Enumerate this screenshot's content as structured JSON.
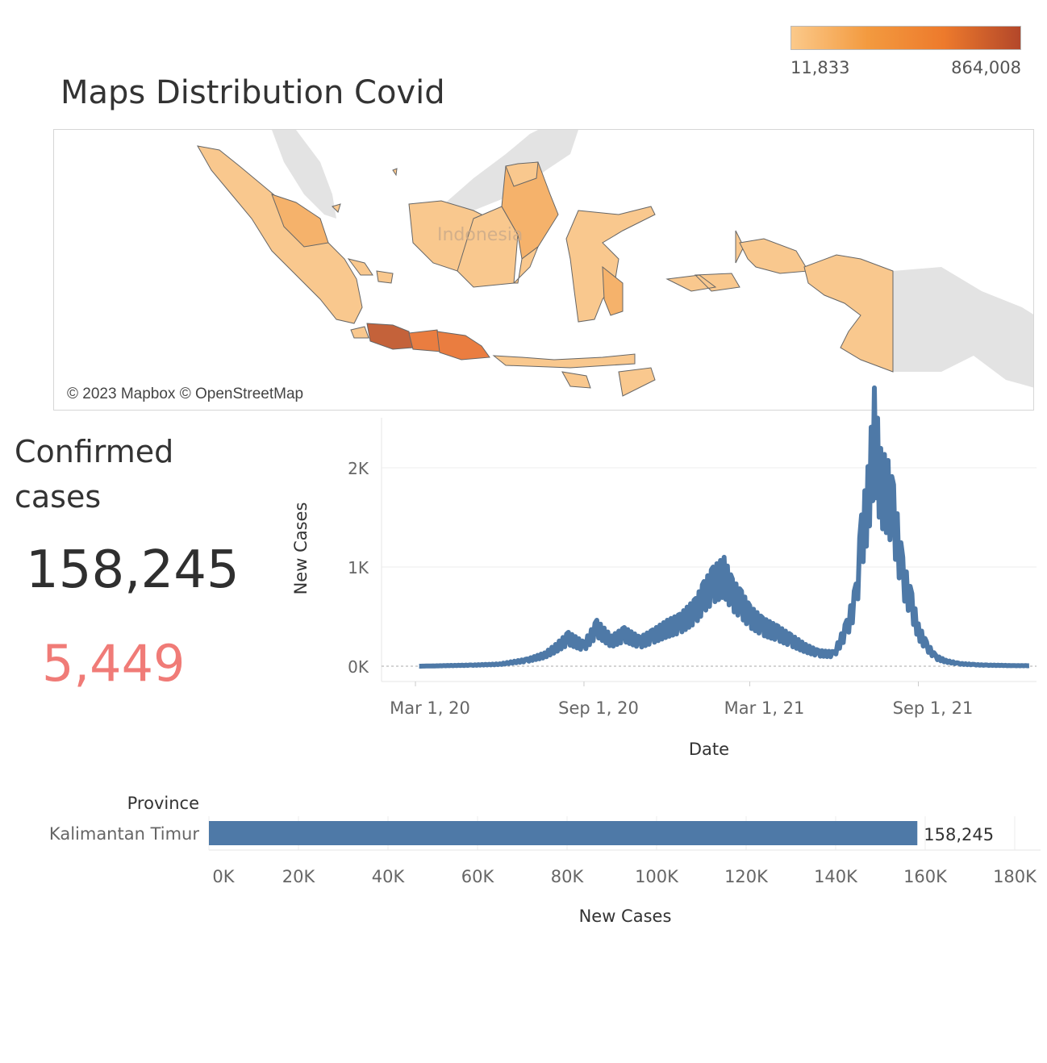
{
  "legend": {
    "min_label": "11,833",
    "max_label": "864,008",
    "gradient_colors": [
      "#fbc98a",
      "#f39a3f",
      "#ed7a2c",
      "#b3472a"
    ]
  },
  "map": {
    "title": "Maps Distribution Covid",
    "attribution": "© 2023 Mapbox © OpenStreetMap",
    "country_label": "Indonesia",
    "colors": {
      "low": "#f9c88e",
      "mid": "#f5b26b",
      "high": "#ea7d40",
      "max": "#c4623a",
      "land_other": "#e3e3e3",
      "border": "#555555"
    }
  },
  "kpi": {
    "title": "Confirmed cases",
    "total": "158,245",
    "new": "5,449"
  },
  "chart_data": [
    {
      "type": "line",
      "xlabel": "Date",
      "ylabel": "New Cases",
      "x_ticks": [
        "Mar 1, 20",
        "Sep 1, 20",
        "Mar 1, 21",
        "Sep 1, 21"
      ],
      "y_ticks": [
        "0K",
        "1K",
        "2K"
      ],
      "ylim": [
        0,
        2400
      ],
      "xlim": [
        "2020-01-24",
        "2022-01-08"
      ],
      "color": "#4e79a7",
      "series": [
        {
          "x": [
            "2020-03-05",
            "2020-04-01",
            "2020-05-01",
            "2020-06-01",
            "2020-07-01",
            "2020-07-20",
            "2020-08-01",
            "2020-08-15",
            "2020-09-01",
            "2020-09-15",
            "2020-10-01",
            "2020-10-15",
            "2020-11-01",
            "2020-11-15",
            "2020-12-01",
            "2020-12-15",
            "2021-01-01",
            "2021-01-10",
            "2021-01-20",
            "2021-02-01",
            "2021-02-10",
            "2021-02-20",
            "2021-03-01",
            "2021-03-15",
            "2021-04-01",
            "2021-04-15",
            "2021-05-01",
            "2021-05-15",
            "2021-06-01",
            "2021-06-15",
            "2021-06-25",
            "2021-07-01",
            "2021-07-08",
            "2021-07-15",
            "2021-07-22",
            "2021-07-30",
            "2021-08-05",
            "2021-08-15",
            "2021-08-25",
            "2021-09-01",
            "2021-09-10",
            "2021-09-20",
            "2021-10-01",
            "2021-10-15",
            "2021-11-01",
            "2021-11-15",
            "2021-12-01",
            "2021-12-15",
            "2021-12-31"
          ],
          "y": [
            0,
            5,
            10,
            20,
            60,
            110,
            180,
            280,
            200,
            380,
            250,
            320,
            240,
            300,
            380,
            430,
            560,
            700,
            820,
            900,
            720,
            620,
            500,
            400,
            330,
            260,
            180,
            130,
            120,
            380,
            680,
            1250,
            1650,
            2300,
            1800,
            1700,
            1500,
            900,
            600,
            350,
            200,
            90,
            50,
            25,
            15,
            10,
            8,
            5,
            5
          ]
        }
      ]
    },
    {
      "type": "bar",
      "orientation": "horizontal",
      "ylabel": "Province",
      "xlabel": "New Cases",
      "categories": [
        "Kalimantan Timur"
      ],
      "values": [
        158245
      ],
      "value_labels": [
        "158,245"
      ],
      "x_ticks": [
        "0K",
        "20K",
        "40K",
        "60K",
        "80K",
        "100K",
        "120K",
        "140K",
        "160K",
        "180K"
      ],
      "xlim": [
        0,
        180000
      ],
      "color": "#4e79a7"
    }
  ]
}
